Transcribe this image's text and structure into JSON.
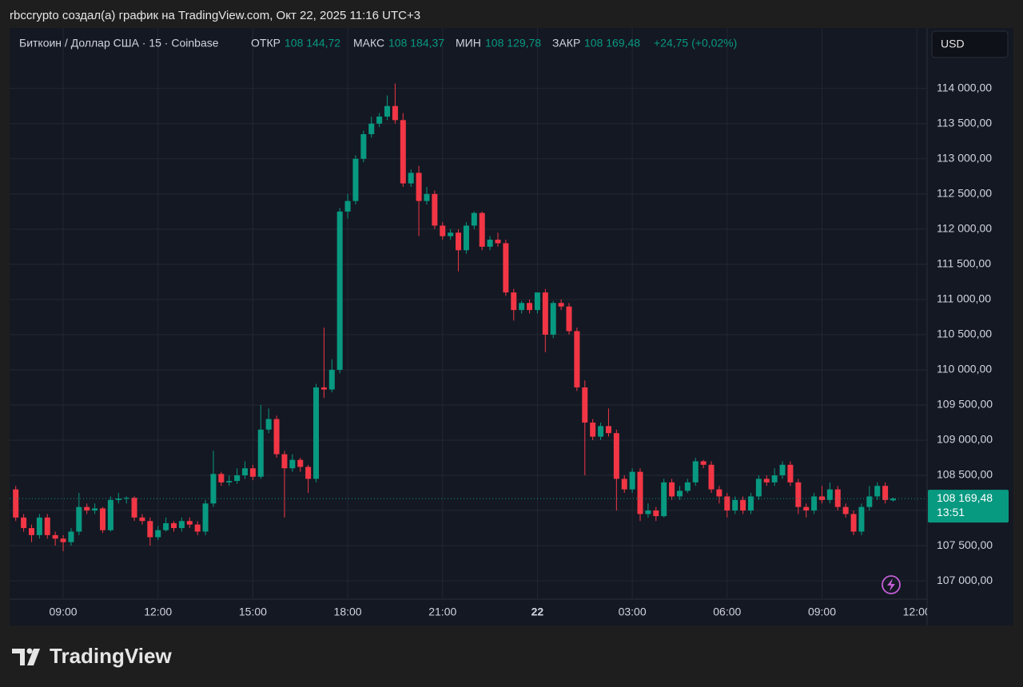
{
  "attribution": "rbccrypto создал(а) график на TradingView.com, Окт 22, 2025 11:16 UTC+3",
  "brand": "TradingView",
  "chart_data": {
    "type": "candlestick",
    "legend": {
      "symbol": "Биткоин / Доллар США · 15 · Coinbase",
      "fields": [
        {
          "name": "ОТКР",
          "text": "108 144,72"
        },
        {
          "name": "МАКС",
          "text": "108 184,37"
        },
        {
          "name": "МИН",
          "text": "108 129,78"
        },
        {
          "name": "ЗАКР",
          "text": "108 169,48"
        }
      ],
      "change": "+24,75 (+0,02%)"
    },
    "currency": "USD",
    "up_color": "#089981",
    "down_color": "#f23645",
    "open": [
      108300,
      107900,
      107750,
      107650,
      107900,
      107650,
      107600,
      107550,
      107700,
      108050,
      108000,
      108030,
      107720,
      108150,
      108170,
      108180,
      107900,
      107850,
      107620,
      107720,
      107820,
      107750,
      107850,
      107800,
      107700,
      108100,
      108520,
      108400,
      108420,
      108500,
      108600,
      108480,
      109150,
      109300,
      108800,
      108600,
      108720,
      108620,
      108450,
      109750,
      109720,
      110000,
      112250,
      112400,
      113000,
      113350,
      113500,
      113600,
      113750,
      113550,
      112650,
      112800,
      112400,
      112500,
      112050,
      111900,
      111950,
      111700,
      112050,
      112230,
      111750,
      111850,
      111800,
      111100,
      110850,
      110950,
      110850,
      111100,
      110500,
      110950,
      110900,
      110550,
      109750,
      109250,
      109050,
      109200,
      109100,
      108450,
      108300,
      108550,
      107950,
      108000,
      107920,
      108400,
      108200,
      108280,
      108400,
      108700,
      108650,
      108300,
      108200,
      108000,
      108150,
      108000,
      108200,
      108450,
      108400,
      108500,
      108650,
      108400,
      108050,
      108000,
      108200,
      108150,
      108300,
      108050,
      107950,
      107700,
      108050,
      108200,
      108350,
      108144.72
    ],
    "high": [
      108350,
      107950,
      107800,
      107950,
      107950,
      107700,
      107650,
      107750,
      108250,
      108100,
      108100,
      108050,
      108200,
      108250,
      108200,
      108200,
      107950,
      107900,
      107780,
      107900,
      107850,
      107900,
      107900,
      107850,
      108150,
      108850,
      108550,
      108500,
      108600,
      108700,
      108650,
      109500,
      109450,
      109350,
      108850,
      108800,
      108750,
      108650,
      109800,
      110600,
      110150,
      112300,
      112500,
      113050,
      113400,
      113600,
      113650,
      113900,
      114070,
      113650,
      112850,
      112900,
      112600,
      112550,
      112100,
      112000,
      112000,
      112100,
      112250,
      112250,
      111900,
      111950,
      111850,
      111150,
      110980,
      111000,
      111100,
      111150,
      110980,
      111000,
      110950,
      110600,
      109850,
      109300,
      109250,
      109450,
      109150,
      108500,
      108600,
      108600,
      108100,
      108050,
      108450,
      108450,
      108350,
      108450,
      108750,
      108720,
      108700,
      108350,
      108250,
      108200,
      108200,
      108250,
      108500,
      108500,
      108600,
      108700,
      108700,
      108450,
      108100,
      108250,
      108350,
      108400,
      108350,
      108100,
      108000,
      108100,
      108350,
      108400,
      108400,
      108184.37
    ],
    "low": [
      107850,
      107700,
      107550,
      107600,
      107600,
      107500,
      107420,
      107500,
      107650,
      107950,
      107950,
      107680,
      107700,
      108100,
      108100,
      107850,
      107800,
      107500,
      107580,
      107700,
      107700,
      107700,
      107750,
      107650,
      107650,
      108050,
      108350,
      108350,
      108380,
      108450,
      108430,
      108450,
      109100,
      108750,
      107900,
      108550,
      108550,
      108250,
      108400,
      109600,
      109680,
      109950,
      112150,
      112350,
      112950,
      113300,
      113450,
      113550,
      113500,
      112600,
      112600,
      111900,
      112350,
      112000,
      111850,
      111850,
      111400,
      111650,
      112000,
      111700,
      111700,
      111750,
      111050,
      110700,
      110800,
      110800,
      110800,
      110250,
      110450,
      110850,
      110500,
      109700,
      108500,
      109000,
      109000,
      109050,
      108000,
      108250,
      108250,
      107850,
      107900,
      107850,
      107900,
      108150,
      108150,
      108250,
      108350,
      108600,
      108250,
      108100,
      107900,
      107950,
      107950,
      107950,
      108150,
      108350,
      108350,
      108450,
      108350,
      107950,
      107900,
      107950,
      108100,
      108100,
      108000,
      107900,
      107650,
      107650,
      108000,
      108150,
      108100,
      108129.78
    ],
    "close": [
      107900,
      107750,
      107650,
      107900,
      107650,
      107600,
      107550,
      107700,
      108050,
      108000,
      108030,
      107720,
      108150,
      108170,
      108180,
      107900,
      107850,
      107620,
      107720,
      107820,
      107750,
      107850,
      107800,
      107700,
      108100,
      108520,
      108400,
      108420,
      108500,
      108600,
      108480,
      109150,
      109300,
      108800,
      108600,
      108720,
      108620,
      108450,
      109750,
      109720,
      110000,
      112250,
      112400,
      113000,
      113350,
      113500,
      113600,
      113750,
      113550,
      112650,
      112800,
      112400,
      112500,
      112050,
      111900,
      111950,
      111700,
      112050,
      112230,
      111750,
      111850,
      111800,
      111100,
      110850,
      110950,
      110850,
      111100,
      110500,
      110950,
      110900,
      110550,
      109750,
      109250,
      109050,
      109200,
      109100,
      108450,
      108300,
      108550,
      107950,
      108000,
      107920,
      108400,
      108200,
      108280,
      108400,
      108700,
      108650,
      108300,
      108200,
      108000,
      108150,
      108000,
      108200,
      108450,
      108400,
      108500,
      108650,
      108400,
      108050,
      108000,
      108200,
      108150,
      108300,
      108050,
      107950,
      107700,
      108050,
      108200,
      108350,
      108150,
      108169.48
    ],
    "ylim": [
      106740,
      114860
    ],
    "yticks": [
      {
        "value": 107000,
        "label": "107 000,00"
      },
      {
        "value": 107500,
        "label": "107 500,00"
      },
      {
        "value": 108000,
        "label": "108 000,00"
      },
      {
        "value": 108500,
        "label": "108 500,00"
      },
      {
        "value": 109000,
        "label": "109 000,00"
      },
      {
        "value": 109500,
        "label": "109 500,00"
      },
      {
        "value": 110000,
        "label": "110 000,00"
      },
      {
        "value": 110500,
        "label": "110 500,00"
      },
      {
        "value": 111000,
        "label": "111 000,00"
      },
      {
        "value": 111500,
        "label": "111 500,00"
      },
      {
        "value": 112000,
        "label": "112 000,00"
      },
      {
        "value": 112500,
        "label": "112 500,00"
      },
      {
        "value": 113000,
        "label": "113 000,00"
      },
      {
        "value": 113500,
        "label": "113 500,00"
      },
      {
        "value": 114000,
        "label": "114 000,00"
      }
    ],
    "xticks": [
      {
        "value": 6,
        "label": "09:00"
      },
      {
        "value": 18,
        "label": "12:00"
      },
      {
        "value": 30,
        "label": "15:00"
      },
      {
        "value": 42,
        "label": "18:00"
      },
      {
        "value": 54,
        "label": "21:00"
      },
      {
        "value": 66,
        "label": "22"
      },
      {
        "value": 78,
        "label": "03:00"
      },
      {
        "value": 90,
        "label": "06:00"
      },
      {
        "value": 102,
        "label": "09:00"
      },
      {
        "value": 114,
        "label": "12:00"
      }
    ],
    "grid": true,
    "last_price": {
      "value": 108169.48,
      "label": "108 169,48"
    },
    "countdown": "13:51"
  }
}
